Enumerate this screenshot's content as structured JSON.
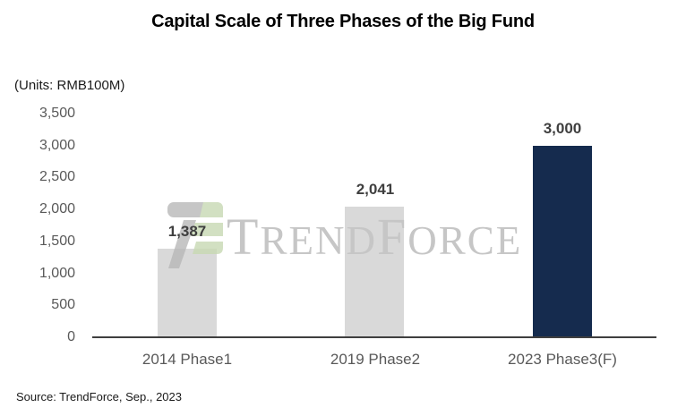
{
  "title": "Capital Scale of Three Phases of the Big Fund",
  "units_label": "(Units: RMB100M)",
  "source": "Source: TrendForce, Sep., 2023",
  "watermark": {
    "logo_icon": "trendforce-logo",
    "t1": "T",
    "t2": "REND",
    "t3": "F",
    "t4": "ORCE"
  },
  "chart_data": {
    "type": "bar",
    "title": "Capital Scale of Three Phases of the Big Fund",
    "categories": [
      "2014 Phase1",
      "2019 Phase2",
      "2023 Phase3(F)"
    ],
    "values": [
      1387,
      2041,
      3000
    ],
    "data_labels": [
      "1,387",
      "2,041",
      "3,000"
    ],
    "xlabel": "",
    "ylabel": "(Units: RMB100M)",
    "ylim": [
      0,
      3500
    ],
    "ytick_interval": 500,
    "yticks": [
      "3,500",
      "3,000",
      "2,500",
      "2,000",
      "1,500",
      "1,000",
      "500",
      "0"
    ],
    "grid": false,
    "legend": false,
    "bar_colors": [
      "#D9D9D9",
      "#D9D9D9",
      "#152B4E"
    ]
  },
  "colors": {
    "bar_gray": "#D9D9D9",
    "bar_navy": "#152B4E",
    "axis_label": "#595959",
    "data_label": "#3F3F3F",
    "axis_line": "#3F3F3F",
    "watermark_text": "#C6C6C6",
    "logo_green": "#C8D9B3",
    "logo_gray": "#B8B8B8"
  }
}
